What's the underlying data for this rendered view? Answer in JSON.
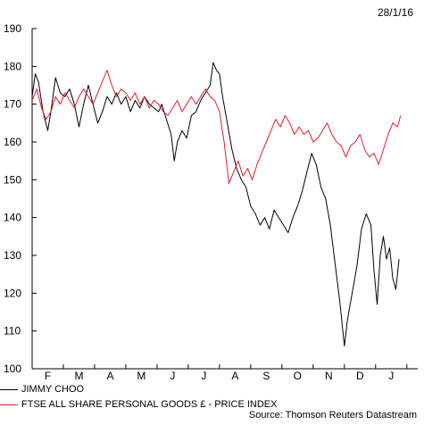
{
  "date_label": "28/1/16",
  "source": "Source: Thomson Reuters Datastream",
  "colors": {
    "series1": "#000000",
    "series2": "#e0202a",
    "axis": "#000000"
  },
  "chart_data": {
    "type": "line",
    "ylim": [
      100,
      190
    ],
    "y_ticks": [
      100,
      110,
      120,
      130,
      140,
      150,
      160,
      170,
      180,
      190
    ],
    "x_ticks": [
      "F",
      "M",
      "A",
      "M",
      "J",
      "J",
      "A",
      "S",
      "O",
      "N",
      "D",
      "J"
    ],
    "x_range_months": [
      0,
      12.35
    ],
    "series": [
      {
        "name": "JIMMY CHOO",
        "color": "#000000",
        "points": [
          [
            0,
            172
          ],
          [
            0.1,
            178
          ],
          [
            0.2,
            176
          ],
          [
            0.35,
            168
          ],
          [
            0.5,
            163
          ],
          [
            0.6,
            168
          ],
          [
            0.75,
            177
          ],
          [
            0.9,
            173
          ],
          [
            1.05,
            172
          ],
          [
            1.2,
            174
          ],
          [
            1.35,
            170
          ],
          [
            1.5,
            164
          ],
          [
            1.65,
            170
          ],
          [
            1.8,
            175
          ],
          [
            1.95,
            170
          ],
          [
            2.1,
            165
          ],
          [
            2.25,
            168
          ],
          [
            2.4,
            172
          ],
          [
            2.55,
            170
          ],
          [
            2.7,
            173
          ],
          [
            2.85,
            170
          ],
          [
            3,
            172
          ],
          [
            3.15,
            168
          ],
          [
            3.3,
            171
          ],
          [
            3.45,
            169
          ],
          [
            3.6,
            172
          ],
          [
            3.75,
            170
          ],
          [
            3.9,
            169
          ],
          [
            4.05,
            168
          ],
          [
            4.15,
            170
          ],
          [
            4.3,
            166
          ],
          [
            4.45,
            162
          ],
          [
            4.55,
            155
          ],
          [
            4.65,
            160
          ],
          [
            4.8,
            163
          ],
          [
            4.95,
            161
          ],
          [
            5.1,
            167
          ],
          [
            5.25,
            168
          ],
          [
            5.4,
            171
          ],
          [
            5.55,
            173
          ],
          [
            5.7,
            175
          ],
          [
            5.8,
            181
          ],
          [
            5.9,
            179
          ],
          [
            6,
            178
          ],
          [
            6.1,
            172
          ],
          [
            6.25,
            165
          ],
          [
            6.4,
            158
          ],
          [
            6.55,
            153
          ],
          [
            6.7,
            150
          ],
          [
            6.85,
            148
          ],
          [
            7,
            143
          ],
          [
            7.15,
            141
          ],
          [
            7.3,
            138
          ],
          [
            7.45,
            140
          ],
          [
            7.6,
            137
          ],
          [
            7.75,
            142
          ],
          [
            7.9,
            140
          ],
          [
            8.05,
            138
          ],
          [
            8.2,
            136
          ],
          [
            8.35,
            140
          ],
          [
            8.5,
            143
          ],
          [
            8.65,
            147
          ],
          [
            8.8,
            152
          ],
          [
            8.95,
            157
          ],
          [
            9.1,
            154
          ],
          [
            9.25,
            148
          ],
          [
            9.4,
            145
          ],
          [
            9.55,
            138
          ],
          [
            9.7,
            128
          ],
          [
            9.85,
            118
          ],
          [
            10,
            106
          ],
          [
            10.1,
            113
          ],
          [
            10.25,
            120
          ],
          [
            10.4,
            127
          ],
          [
            10.55,
            137
          ],
          [
            10.7,
            141
          ],
          [
            10.85,
            138
          ],
          [
            10.95,
            126
          ],
          [
            11.05,
            117
          ],
          [
            11.15,
            130
          ],
          [
            11.25,
            135
          ],
          [
            11.35,
            129
          ],
          [
            11.45,
            132
          ],
          [
            11.55,
            124
          ],
          [
            11.65,
            121
          ],
          [
            11.75,
            129
          ]
        ]
      },
      {
        "name": "FTSE ALL SHARE PERSONAL GOODS £ - PRICE INDEX",
        "color": "#e0202a",
        "points": [
          [
            0,
            171
          ],
          [
            0.15,
            174
          ],
          [
            0.3,
            169
          ],
          [
            0.45,
            166
          ],
          [
            0.6,
            168
          ],
          [
            0.75,
            172
          ],
          [
            0.9,
            170
          ],
          [
            1.05,
            173
          ],
          [
            1.2,
            171
          ],
          [
            1.35,
            169
          ],
          [
            1.5,
            172
          ],
          [
            1.65,
            174
          ],
          [
            1.8,
            172
          ],
          [
            1.95,
            170
          ],
          [
            2.1,
            173
          ],
          [
            2.25,
            176
          ],
          [
            2.4,
            179
          ],
          [
            2.55,
            175
          ],
          [
            2.7,
            172
          ],
          [
            2.85,
            174
          ],
          [
            3,
            173
          ],
          [
            3.15,
            171
          ],
          [
            3.3,
            173
          ],
          [
            3.45,
            170
          ],
          [
            3.6,
            172
          ],
          [
            3.75,
            169
          ],
          [
            3.9,
            171
          ],
          [
            4.05,
            170
          ],
          [
            4.2,
            168
          ],
          [
            4.35,
            167
          ],
          [
            4.5,
            169
          ],
          [
            4.65,
            171
          ],
          [
            4.8,
            168
          ],
          [
            4.95,
            170
          ],
          [
            5.1,
            172
          ],
          [
            5.25,
            170
          ],
          [
            5.4,
            172
          ],
          [
            5.55,
            174
          ],
          [
            5.7,
            172
          ],
          [
            5.85,
            171
          ],
          [
            6,
            168
          ],
          [
            6.15,
            160
          ],
          [
            6.3,
            149
          ],
          [
            6.45,
            152
          ],
          [
            6.6,
            155
          ],
          [
            6.75,
            151
          ],
          [
            6.9,
            153
          ],
          [
            7.05,
            150
          ],
          [
            7.2,
            154
          ],
          [
            7.35,
            157
          ],
          [
            7.5,
            160
          ],
          [
            7.65,
            163
          ],
          [
            7.8,
            166
          ],
          [
            7.95,
            164
          ],
          [
            8.1,
            167
          ],
          [
            8.25,
            165
          ],
          [
            8.4,
            162
          ],
          [
            8.55,
            164
          ],
          [
            8.7,
            162
          ],
          [
            8.85,
            163
          ],
          [
            9,
            160
          ],
          [
            9.15,
            161
          ],
          [
            9.3,
            163
          ],
          [
            9.45,
            165
          ],
          [
            9.6,
            162
          ],
          [
            9.75,
            160
          ],
          [
            9.9,
            159
          ],
          [
            10.05,
            156
          ],
          [
            10.2,
            159
          ],
          [
            10.35,
            160
          ],
          [
            10.5,
            162
          ],
          [
            10.65,
            158
          ],
          [
            10.8,
            156
          ],
          [
            10.95,
            157
          ],
          [
            11.1,
            154
          ],
          [
            11.25,
            158
          ],
          [
            11.4,
            162
          ],
          [
            11.55,
            165
          ],
          [
            11.7,
            164
          ],
          [
            11.8,
            167
          ]
        ]
      }
    ]
  }
}
